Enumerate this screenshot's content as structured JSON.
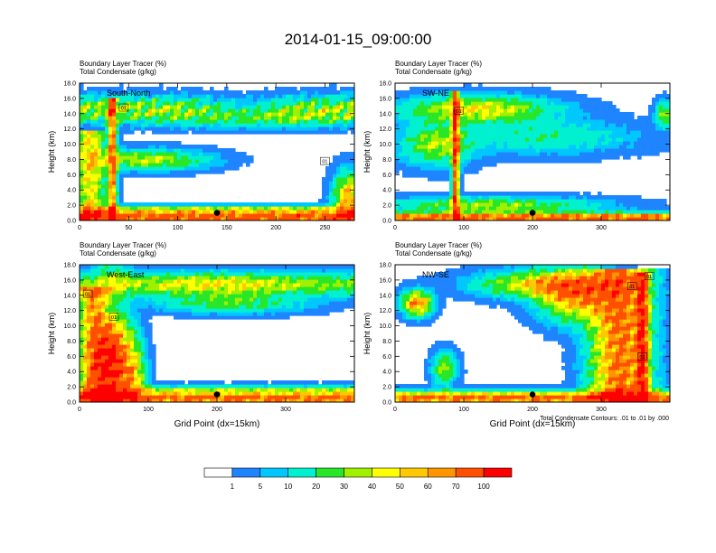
{
  "page_title": "2014-01-15_09:00:00",
  "footnote": "Total Condensate Contours: .01 to .01 by .000",
  "chart_data": [
    {
      "type": "heatmap",
      "panel_label": "South-North",
      "title_line1": "Boundary Layer Tracer   (%)",
      "title_line2": "Total Condensate   (g/kg)",
      "ylabel": "Height (km)",
      "xlabel": "",
      "xlim": [
        0,
        280
      ],
      "ylim": [
        0,
        18
      ],
      "xticks": [
        0,
        50,
        100,
        150,
        200,
        250
      ],
      "yticks": [
        0.0,
        2.0,
        4.0,
        6.0,
        8.0,
        10.0,
        12.0,
        14.0,
        16.0,
        18.0
      ],
      "marker": [
        140,
        1.0
      ],
      "contour_labels": [
        {
          "text": "01",
          "x": 45,
          "y": 14.8
        },
        {
          "text": "01",
          "x": 250,
          "y": 7.8
        }
      ]
    },
    {
      "type": "heatmap",
      "panel_label": "SW-NE",
      "title_line1": "Boundary Layer Tracer   (%)",
      "title_line2": "Total Condensate   (g/kg)",
      "ylabel": "Height (km)",
      "xlabel": "",
      "xlim": [
        0,
        400
      ],
      "ylim": [
        0,
        18
      ],
      "xticks": [
        0,
        100,
        200,
        300
      ],
      "yticks": [
        0.0,
        2.0,
        4.0,
        6.0,
        8.0,
        10.0,
        12.0,
        14.0,
        16.0,
        18.0
      ],
      "marker": [
        200,
        1.0
      ],
      "contour_labels": [
        {
          "text": "01",
          "x": 93,
          "y": 14.4
        }
      ]
    },
    {
      "type": "heatmap",
      "panel_label": "West-East",
      "title_line1": "Boundary Layer Tracer   (%)",
      "title_line2": "Total Condensate   (g/kg)",
      "ylabel": "Height (km)",
      "xlabel": "Grid Point (dx=15km)",
      "xlim": [
        0,
        400
      ],
      "ylim": [
        0,
        18
      ],
      "xticks": [
        0,
        100,
        200,
        300
      ],
      "yticks": [
        0.0,
        2.0,
        4.0,
        6.0,
        8.0,
        10.0,
        12.0,
        14.0,
        16.0,
        18.0
      ],
      "marker": [
        200,
        1.0
      ],
      "contour_labels": [
        {
          "text": "01",
          "x": 12,
          "y": 14.2
        },
        {
          "text": "01",
          "x": 50,
          "y": 11.2
        }
      ]
    },
    {
      "type": "heatmap",
      "panel_label": "NW-SE",
      "title_line1": "Boundary Layer Tracer   (%)",
      "title_line2": "Total Condensate   (g/kg)",
      "ylabel": "Height (km)",
      "xlabel": "Grid Point (dx=15km)",
      "xlim": [
        0,
        400
      ],
      "ylim": [
        0,
        18
      ],
      "xticks": [
        0,
        100,
        200,
        300
      ],
      "yticks": [
        0.0,
        2.0,
        4.0,
        6.0,
        8.0,
        10.0,
        12.0,
        14.0,
        16.0,
        18.0
      ],
      "marker": [
        200,
        1.0
      ],
      "contour_labels": [
        {
          "text": "01",
          "x": 370,
          "y": 16.5
        },
        {
          "text": "01",
          "x": 345,
          "y": 15.2
        },
        {
          "text": "01",
          "x": 360,
          "y": 6.0
        }
      ]
    }
  ],
  "colorbar": {
    "labels": [
      "1",
      "5",
      "10",
      "20",
      "30",
      "40",
      "50",
      "60",
      "70",
      "100"
    ],
    "colors": [
      "#ffffff",
      "#1e84ff",
      "#00c8ff",
      "#00f0d0",
      "#28e628",
      "#a0f000",
      "#ffff00",
      "#ffc800",
      "#ff9600",
      "#ff5000",
      "#ff0000"
    ]
  }
}
